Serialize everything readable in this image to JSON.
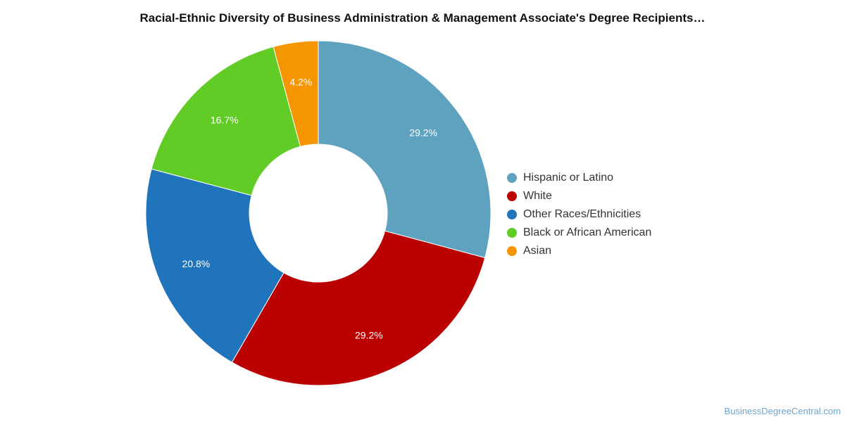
{
  "chart_data": {
    "type": "pie",
    "variant": "donut",
    "title": "Racial-Ethnic Diversity of Business Administration & Management Associate's Degree Recipients…",
    "categories": [
      "Hispanic or Latino",
      "White",
      "Other Races/Ethnicities",
      "Black or African American",
      "Asian"
    ],
    "values": [
      29.2,
      29.2,
      20.8,
      16.7,
      4.2
    ],
    "labels": [
      "29.2%",
      "29.2%",
      "20.8%",
      "16.7%",
      "4.2%"
    ],
    "colors": [
      "#5ea2c0",
      "#bb0000",
      "#1f74bb",
      "#62cc27",
      "#f59500"
    ],
    "legend_position": "right"
  },
  "source": "BusinessDegreeCentral.com"
}
